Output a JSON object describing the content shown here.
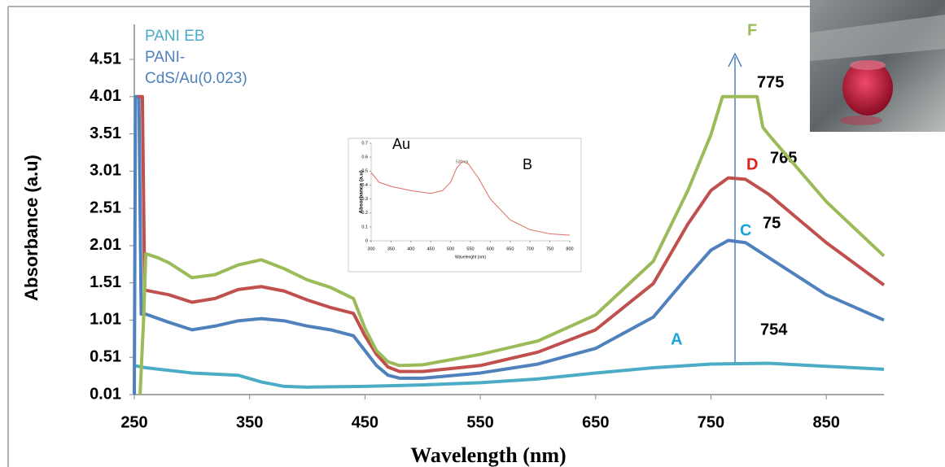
{
  "chart_data": [
    {
      "type": "line",
      "x_label": "Wavelength (nm)",
      "y_label": "Absorbance (a.u)",
      "xlim": [
        250,
        900
      ],
      "ylim": [
        0.01,
        4.51
      ],
      "xticks": [
        250,
        350,
        450,
        550,
        650,
        750,
        850
      ],
      "yticks": [
        0.01,
        0.51,
        1.01,
        1.51,
        2.01,
        2.51,
        3.01,
        3.51,
        4.01,
        4.51
      ],
      "grid": false,
      "legend": "top-left",
      "series": [
        {
          "name": "PANI EB",
          "color": "#4bacc6",
          "x": [
            250,
            260,
            300,
            340,
            360,
            380,
            400,
            450,
            500,
            550,
            600,
            650,
            700,
            750,
            800,
            850,
            900
          ],
          "values": [
            0.4,
            0.37,
            0.3,
            0.27,
            0.18,
            0.12,
            0.11,
            0.12,
            0.14,
            0.17,
            0.22,
            0.3,
            0.37,
            0.42,
            0.43,
            0.39,
            0.35
          ]
        },
        {
          "name": "PANI-CdS/Au(0.023)",
          "color": "#4f81bd",
          "x": [
            250,
            251,
            254,
            256,
            260,
            280,
            300,
            320,
            340,
            360,
            380,
            400,
            420,
            440,
            450,
            460,
            470,
            480,
            500,
            550,
            600,
            650,
            700,
            730,
            750,
            765,
            780,
            800,
            850,
            900
          ],
          "values": [
            0.01,
            4.01,
            4.01,
            1.09,
            1.09,
            0.98,
            0.88,
            0.93,
            1.0,
            1.03,
            1.0,
            0.93,
            0.88,
            0.8,
            0.6,
            0.4,
            0.27,
            0.23,
            0.23,
            0.3,
            0.42,
            0.63,
            1.05,
            1.6,
            1.95,
            2.08,
            2.05,
            1.85,
            1.35,
            1.01
          ]
        },
        {
          "color": "#c0504d",
          "x": [
            253,
            257,
            259,
            260,
            280,
            300,
            320,
            340,
            360,
            380,
            400,
            420,
            440,
            450,
            460,
            470,
            480,
            500,
            550,
            600,
            650,
            700,
            730,
            750,
            765,
            780,
            800,
            850,
            900
          ],
          "values": [
            4.01,
            4.01,
            1.4,
            1.41,
            1.35,
            1.25,
            1.3,
            1.42,
            1.46,
            1.4,
            1.28,
            1.18,
            1.1,
            0.8,
            0.55,
            0.38,
            0.32,
            0.32,
            0.4,
            0.58,
            0.88,
            1.5,
            2.3,
            2.75,
            2.92,
            2.9,
            2.7,
            2.05,
            1.48
          ]
        },
        {
          "color": "#9bbb59",
          "x": [
            255,
            258,
            260,
            270,
            280,
            300,
            320,
            340,
            360,
            380,
            400,
            420,
            440,
            450,
            460,
            470,
            480,
            500,
            550,
            600,
            650,
            700,
            730,
            750,
            760,
            765,
            780,
            790,
            795,
            800,
            850,
            900
          ],
          "values": [
            0.01,
            1.0,
            1.9,
            1.85,
            1.78,
            1.58,
            1.62,
            1.75,
            1.82,
            1.7,
            1.55,
            1.45,
            1.3,
            0.9,
            0.6,
            0.45,
            0.4,
            0.41,
            0.55,
            0.73,
            1.08,
            1.8,
            2.75,
            3.5,
            4.01,
            4.01,
            4.01,
            4.01,
            3.6,
            3.5,
            2.6,
            1.87
          ]
        }
      ],
      "annotations": [
        "F",
        "775",
        "D",
        "765",
        "C",
        "75",
        "A",
        "754",
        "Au",
        "B"
      ]
    },
    {
      "type": "line",
      "x_label": "Wavelenght (nm)",
      "y_label": "Absorbance (a.u)",
      "xlim": [
        300,
        800
      ],
      "ylim": [
        0,
        0.7
      ],
      "xticks": [
        300,
        350,
        400,
        450,
        500,
        550,
        600,
        650,
        700,
        750,
        800
      ],
      "yticks": [
        0,
        0.1,
        0.2,
        0.3,
        0.4,
        0.5,
        0.6,
        0.7
      ],
      "grid": false,
      "series": [
        {
          "color": "#d9705f",
          "x": [
            300,
            320,
            350,
            400,
            450,
            480,
            500,
            515,
            530,
            545,
            570,
            600,
            650,
            700,
            750,
            800
          ],
          "values": [
            0.49,
            0.42,
            0.39,
            0.36,
            0.34,
            0.36,
            0.42,
            0.52,
            0.57,
            0.55,
            0.45,
            0.3,
            0.15,
            0.08,
            0.05,
            0.04
          ]
        }
      ],
      "annotations": [
        "530nm"
      ]
    }
  ]
}
